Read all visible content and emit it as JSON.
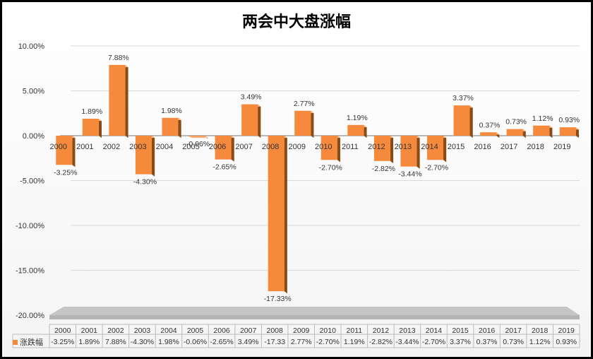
{
  "chart_data": {
    "type": "bar",
    "title": "两会中大盘涨幅",
    "categories": [
      "2000",
      "2001",
      "2002",
      "2003",
      "2004",
      "2005",
      "2006",
      "2007",
      "2008",
      "2009",
      "2010",
      "2011",
      "2012",
      "2013",
      "2014",
      "2015",
      "2016",
      "2017",
      "2018",
      "2019"
    ],
    "series": [
      {
        "name": "涨跌幅",
        "values": [
          -3.25,
          1.89,
          7.88,
          -4.3,
          1.98,
          -0.06,
          -2.65,
          3.49,
          -17.33,
          2.77,
          -2.7,
          1.19,
          -2.82,
          -3.44,
          -2.7,
          3.37,
          0.37,
          0.73,
          1.12,
          0.93
        ],
        "data_labels": [
          "-3.25%",
          "1.89%",
          "7.88%",
          "-4.30%",
          "1.98%",
          "-0.06%",
          "-2.65%",
          "3.49%",
          "-17.33%",
          "2.77%",
          "-2.70%",
          "1.19%",
          "-2.82%",
          "-3.44%",
          "-2.70%",
          "3.37%",
          "0.37%",
          "0.73%",
          "1.12%",
          "0.93%"
        ],
        "table_labels": [
          "-3.25%",
          "1.89%",
          "7.88%",
          "-4.30%",
          "1.98%",
          "-0.06%",
          "-2.65%",
          "3.49%",
          "-17.33",
          "2.77%",
          "-2.70%",
          "1.19%",
          "-2.82%",
          "-3.44%",
          "-2.70%",
          "3.37%",
          "0.37%",
          "0.73%",
          "1.12%",
          "0.93%"
        ]
      }
    ],
    "y_ticks": [
      "10.00%",
      "5.00%",
      "0.00%",
      "-5.00%",
      "-10.00%",
      "-15.00%",
      "-20.00%"
    ],
    "y_tick_values": [
      10,
      5,
      0,
      -5,
      -10,
      -15,
      -20
    ],
    "ylim": [
      -20,
      10
    ],
    "grid": true,
    "legend": "data-table",
    "colors": {
      "bar_front": "#f58a3c",
      "bar_side": "#8a4a12",
      "bar_top": "#f9b47c",
      "floor": "#b5b5b5",
      "grid": "#d9d9d9"
    }
  }
}
